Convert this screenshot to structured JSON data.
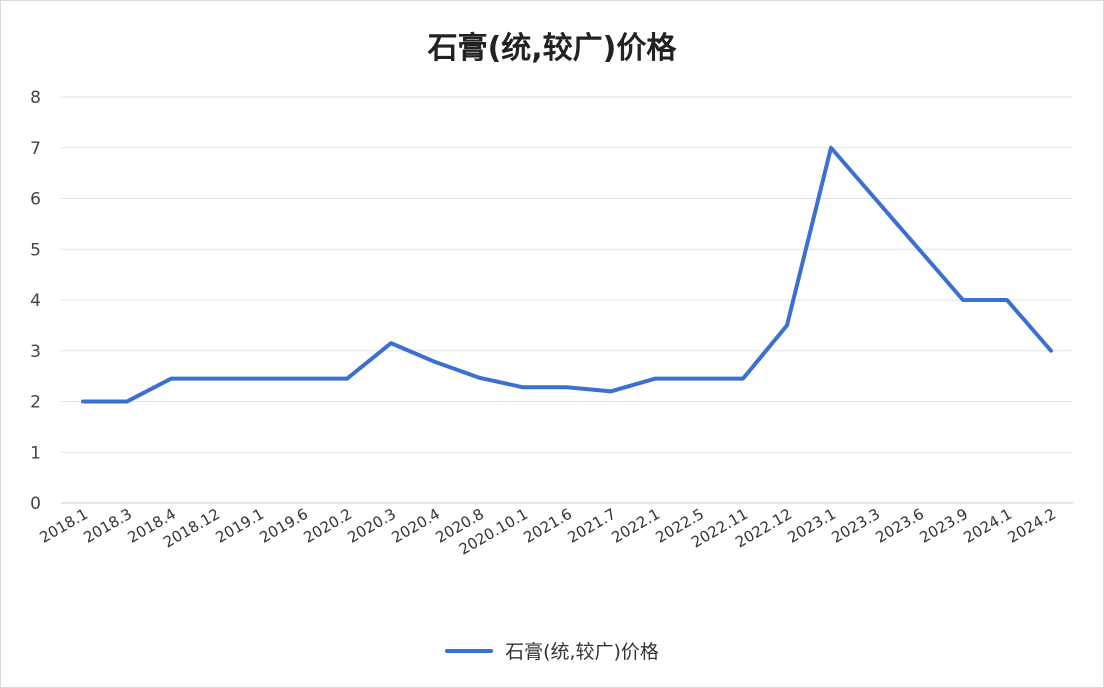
{
  "chart_data": {
    "type": "line",
    "title": "石膏(统,较广)价格",
    "categories": [
      "2018.1",
      "2018.3",
      "2018.4",
      "2018.12",
      "2019.1",
      "2019.6",
      "2020.2",
      "2020.3",
      "2020.4",
      "2020.8",
      "2020.10.1",
      "2021.6",
      "2021.7",
      "2022.1",
      "2022.5",
      "2022.11",
      "2022.12",
      "2023.1",
      "2023.3",
      "2023.6",
      "2023.9",
      "2024.1",
      "2024.2"
    ],
    "series": [
      {
        "name": "石膏(统,较广)价格",
        "values": [
          2.0,
          2.0,
          2.45,
          2.45,
          2.45,
          2.45,
          2.45,
          3.15,
          2.78,
          2.47,
          2.28,
          2.28,
          2.2,
          2.45,
          2.45,
          2.45,
          3.5,
          7.0,
          6.0,
          5.0,
          4.0,
          4.0,
          3.0
        ],
        "color": "#3b6fd1"
      }
    ],
    "ylim": [
      0,
      8
    ],
    "yticks": [
      "0",
      "1",
      "2",
      "3",
      "4",
      "5",
      "6",
      "7",
      "8"
    ],
    "grid": true,
    "legend": "bottom-center"
  }
}
